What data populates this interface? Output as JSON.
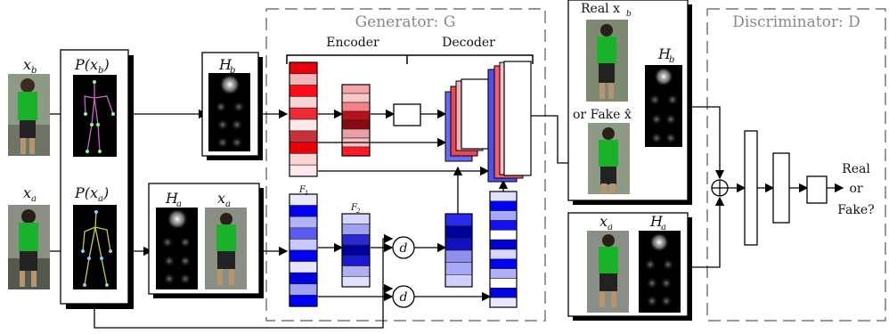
{
  "generator": {
    "title": "Generator: G",
    "encoder": "Encoder",
    "decoder": "Decoder"
  },
  "discriminator": {
    "title": "Discriminator: D"
  },
  "inputs": {
    "xb": "x",
    "xb_sub": "b",
    "xa": "x",
    "xa_sub": "a"
  },
  "pose": {
    "pxb": "P(x",
    "pxb_sub": "b",
    "pxb_end": ")",
    "pxa": "P(x",
    "pxa_sub": "a",
    "pxa_end": ")"
  },
  "heatmaps": {
    "hb": "H",
    "hb_sub": "b",
    "ha": "H",
    "ha_sub": "a",
    "xa": "x",
    "xa_sub": "a"
  },
  "features": {
    "f1": "F",
    "f1_sub": "1",
    "f2": "F",
    "f2_sub": "2"
  },
  "ops": {
    "distance": "d"
  },
  "real_fake_box": {
    "real": "Real x",
    "real_sub": "b",
    "or_fake": "or Fake x̂",
    "hb": "H",
    "hb_sub": "b"
  },
  "cond_box": {
    "xa": "x",
    "xa_sub": "a",
    "ha": "H",
    "ha_sub": "a"
  },
  "output": {
    "line1": "Real",
    "line2": "or",
    "line3": "Fake?"
  },
  "colors": {
    "red_shades": [
      "#e8000a",
      "#f5b5b8",
      "#ff0a16",
      "#fbd3d5",
      "#ee2a35",
      "#fde9ea",
      "#c8303a",
      "#e8000a",
      "#fbd3d5",
      "#fde9ea"
    ],
    "red2_shades": [
      "#f5a5a8",
      "#f7c7c8",
      "#f4808a",
      "#b8111b",
      "#8a0a12",
      "#e8a0a4",
      "#f4c0c4",
      "#ff1a26"
    ],
    "blue_shades": [
      "#e9e9ff",
      "#0000f5",
      "#b2b2f8",
      "#5a5af0",
      "#c8c8ff",
      "#0000f5",
      "#e6e6ff",
      "#0000e0",
      "#a0a0f5",
      "#0000f5"
    ],
    "blue2_shades": [
      "#d6d6ff",
      "#a0a0f0",
      "#2a2ad0",
      "#00009a",
      "#1a1ad0",
      "#b0b0f0",
      "#e0e0ff"
    ],
    "blue3_shades": [
      "#2a2af0",
      "#00009a",
      "#1010c0",
      "#9090f0",
      "#a8a8f8",
      "#d0d0ff"
    ],
    "blue4_shades": [
      "#e0e0ff",
      "#0000f5",
      "#a8a8f8",
      "#1010f0",
      "#ffffff",
      "#0000d0",
      "#d6d6ff",
      "#0000f5",
      "#b0b0f8",
      "#ffffff",
      "#0000e0",
      "#e8e8ff"
    ]
  }
}
